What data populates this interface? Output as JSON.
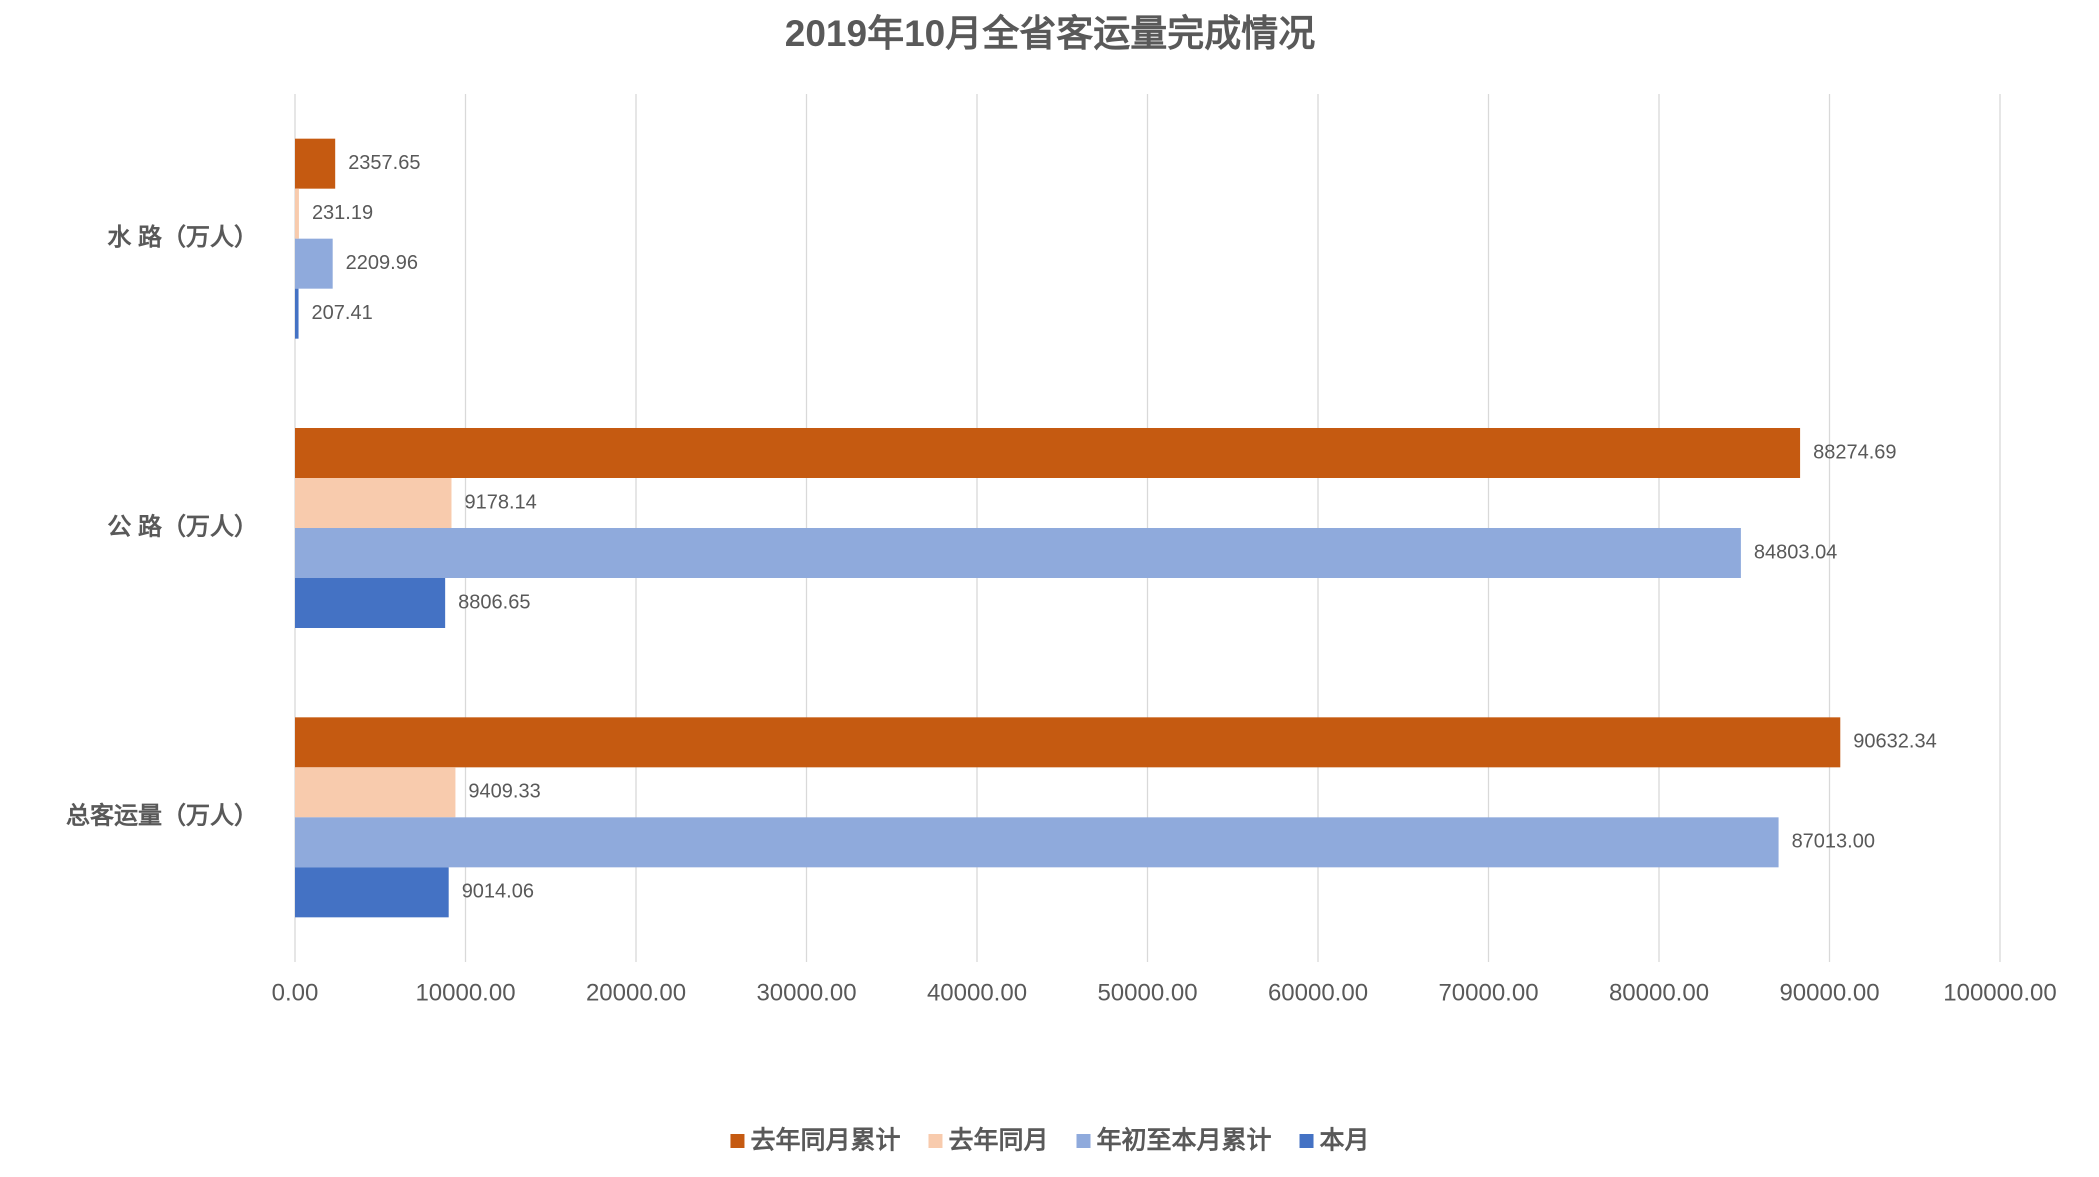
{
  "chart_data": {
    "type": "hbar",
    "title": "2019年10月全省客运量完成情况",
    "categories": [
      "水 路（万人）",
      "公 路（万人）",
      "总客运量（万人）"
    ],
    "series": [
      {
        "name": "去年同月累计",
        "color": "#c55a11",
        "values": [
          2357.65,
          88274.69,
          90632.34
        ]
      },
      {
        "name": "去年同月",
        "color": "#f8cbad",
        "values": [
          231.19,
          9178.14,
          9409.33
        ]
      },
      {
        "name": "年初至本月累计",
        "color": "#8faadc",
        "values": [
          2209.96,
          84803.04,
          87013
        ],
        "value_labels": [
          "2209.96",
          "84803.04",
          "87013.00"
        ]
      },
      {
        "name": "本月",
        "color": "#4472c4",
        "values": [
          207.41,
          8806.65,
          9014.06
        ]
      }
    ],
    "xlim": [
      0,
      100000
    ],
    "xticks": [
      {
        "value": 0,
        "label": "0.00"
      },
      {
        "value": 10000,
        "label": "10000.00"
      },
      {
        "value": 20000,
        "label": "20000.00"
      },
      {
        "value": 30000,
        "label": "30000.00"
      },
      {
        "value": 40000,
        "label": "40000.00"
      },
      {
        "value": 50000,
        "label": "50000.00"
      },
      {
        "value": 60000,
        "label": "60000.00"
      },
      {
        "value": 70000,
        "label": "70000.00"
      },
      {
        "value": 80000,
        "label": "80000.00"
      },
      {
        "value": 90000,
        "label": "90000.00"
      },
      {
        "value": 100000,
        "label": "100000.00"
      }
    ],
    "grid": true,
    "legend": "bottom"
  }
}
